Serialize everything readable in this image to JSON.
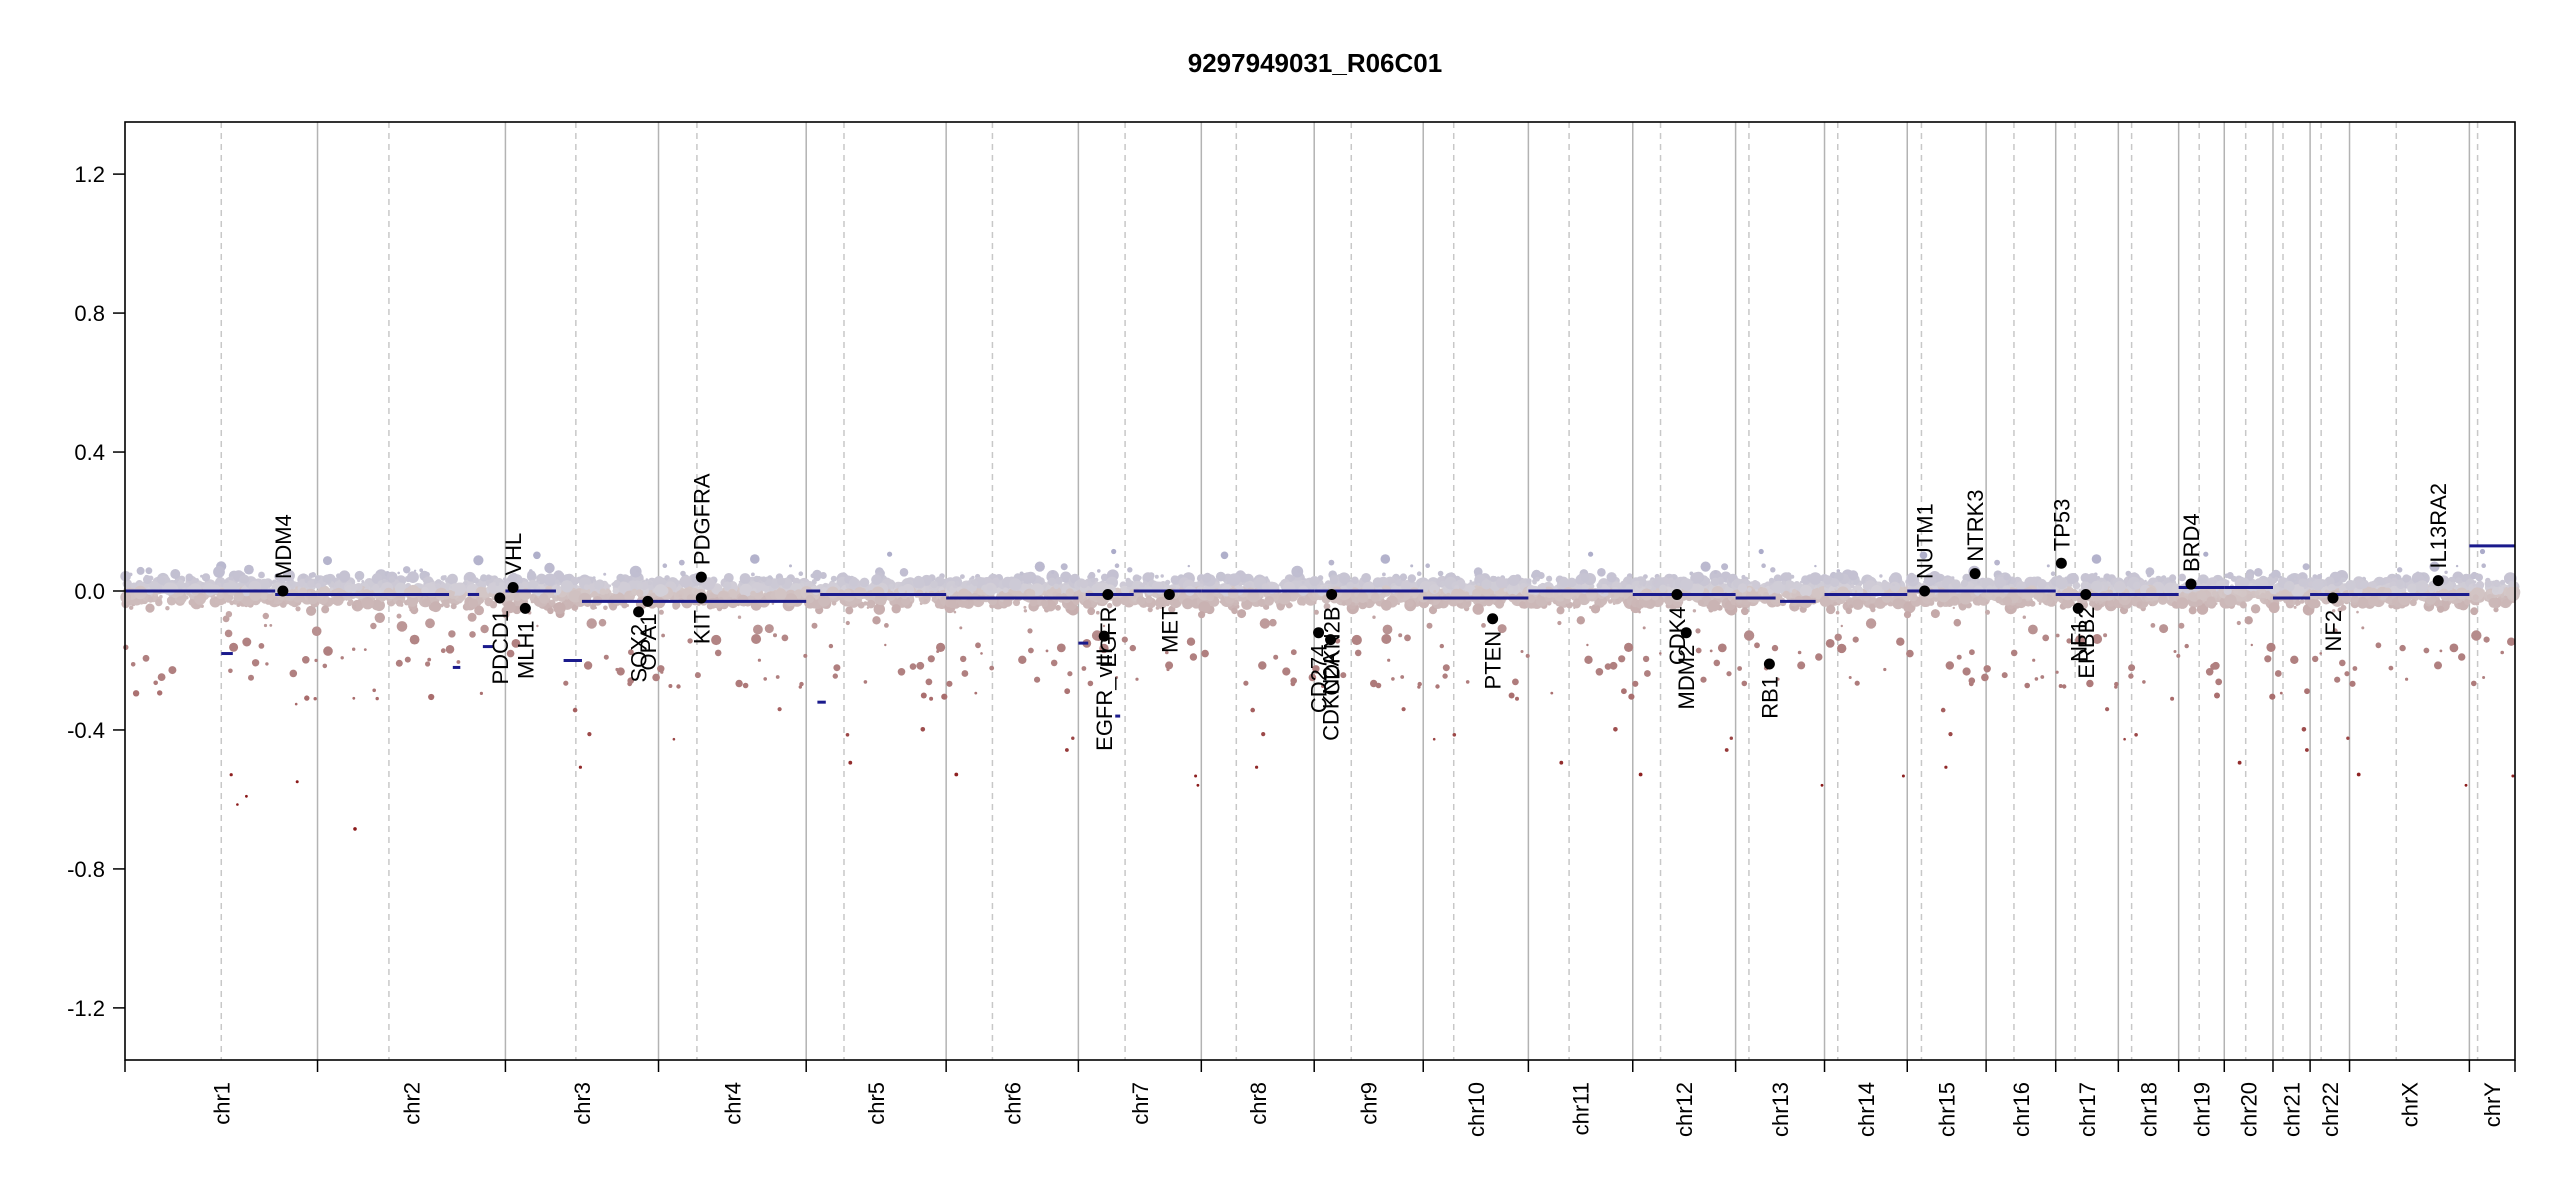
{
  "chart_data": {
    "type": "scatter",
    "title": "9297949031_R06C01",
    "xlabel": "",
    "ylabel": "",
    "ylim": [
      -1.35,
      1.35
    ],
    "y_ticks": [
      1.2,
      0.8,
      0.4,
      0.0,
      -0.4,
      -0.8,
      -1.2
    ],
    "y_tick_labels": [
      "1.2",
      "0.8",
      "0.4",
      "0.0",
      "-0.4",
      "-0.8",
      "-1.2"
    ],
    "colors": {
      "segment": "#1a1a8c",
      "gain": "#a9a9c8",
      "loss": "#b08080",
      "deep_loss": "#8b1a1a",
      "boundary": "#b3b3b3",
      "centromere": "#c8c8c8",
      "gene_dot": "#000000"
    },
    "chromosomes": [
      {
        "name": "chr1",
        "size": 249,
        "cen": 0.5
      },
      {
        "name": "chr2",
        "size": 243,
        "cen": 0.38
      },
      {
        "name": "chr3",
        "size": 198,
        "cen": 0.46
      },
      {
        "name": "chr4",
        "size": 191,
        "cen": 0.26
      },
      {
        "name": "chr5",
        "size": 181,
        "cen": 0.27
      },
      {
        "name": "chr6",
        "size": 171,
        "cen": 0.35
      },
      {
        "name": "chr7",
        "size": 159,
        "cen": 0.38
      },
      {
        "name": "chr8",
        "size": 146,
        "cen": 0.31
      },
      {
        "name": "chr9",
        "size": 141,
        "cen": 0.34
      },
      {
        "name": "chr10",
        "size": 136,
        "cen": 0.29
      },
      {
        "name": "chr11",
        "size": 135,
        "cen": 0.39
      },
      {
        "name": "chr12",
        "size": 133,
        "cen": 0.27
      },
      {
        "name": "chr13",
        "size": 115,
        "cen": 0.15
      },
      {
        "name": "chr14",
        "size": 107,
        "cen": 0.16
      },
      {
        "name": "chr15",
        "size": 102,
        "cen": 0.18
      },
      {
        "name": "chr16",
        "size": 90,
        "cen": 0.4
      },
      {
        "name": "chr17",
        "size": 81,
        "cen": 0.31
      },
      {
        "name": "chr18",
        "size": 78,
        "cen": 0.22
      },
      {
        "name": "chr19",
        "size": 59,
        "cen": 0.45
      },
      {
        "name": "chr20",
        "size": 63,
        "cen": 0.44
      },
      {
        "name": "chr21",
        "size": 48,
        "cen": 0.27
      },
      {
        "name": "chr22",
        "size": 51,
        "cen": 0.28
      },
      {
        "name": "chrX",
        "size": 155,
        "cen": 0.39
      },
      {
        "name": "chrY",
        "size": 59,
        "cen": 0.18
      }
    ],
    "segments": [
      {
        "chr": "chr1",
        "start": 0.0,
        "end": 0.78,
        "value": 0.0
      },
      {
        "chr": "chr1",
        "start": 0.5,
        "end": 0.56,
        "value": -0.18
      },
      {
        "chr": "chr1",
        "start": 0.78,
        "end": 1.0,
        "value": -0.01
      },
      {
        "chr": "chr2",
        "start": 0.0,
        "end": 0.7,
        "value": -0.01
      },
      {
        "chr": "chr2",
        "start": 0.72,
        "end": 0.76,
        "value": -0.22
      },
      {
        "chr": "chr2",
        "start": 0.8,
        "end": 0.86,
        "value": -0.01
      },
      {
        "chr": "chr2",
        "start": 0.88,
        "end": 0.94,
        "value": -0.16
      },
      {
        "chr": "chr3",
        "start": 0.0,
        "end": 0.33,
        "value": 0.0
      },
      {
        "chr": "chr3",
        "start": 0.38,
        "end": 0.5,
        "value": -0.2
      },
      {
        "chr": "chr3",
        "start": 0.5,
        "end": 1.0,
        "value": -0.03
      },
      {
        "chr": "chr4",
        "start": 0.0,
        "end": 1.0,
        "value": -0.03
      },
      {
        "chr": "chr5",
        "start": 0.0,
        "end": 0.1,
        "value": 0.0
      },
      {
        "chr": "chr5",
        "start": 0.08,
        "end": 0.14,
        "value": -0.32
      },
      {
        "chr": "chr5",
        "start": 0.1,
        "end": 1.0,
        "value": -0.01
      },
      {
        "chr": "chr6",
        "start": 0.0,
        "end": 1.0,
        "value": -0.02
      },
      {
        "chr": "chr7",
        "start": 0.0,
        "end": 0.08,
        "value": -0.15
      },
      {
        "chr": "chr7",
        "start": 0.06,
        "end": 0.45,
        "value": -0.01
      },
      {
        "chr": "chr7",
        "start": 0.3,
        "end": 0.34,
        "value": -0.36
      },
      {
        "chr": "chr7",
        "start": 0.45,
        "end": 1.0,
        "value": 0.0
      },
      {
        "chr": "chr8",
        "start": 0.0,
        "end": 1.0,
        "value": 0.0
      },
      {
        "chr": "chr9",
        "start": 0.0,
        "end": 1.0,
        "value": 0.0
      },
      {
        "chr": "chr10",
        "start": 0.0,
        "end": 1.0,
        "value": -0.02
      },
      {
        "chr": "chr11",
        "start": 0.0,
        "end": 1.0,
        "value": 0.0
      },
      {
        "chr": "chr12",
        "start": 0.0,
        "end": 1.0,
        "value": -0.01
      },
      {
        "chr": "chr13",
        "start": 0.0,
        "end": 0.45,
        "value": -0.02
      },
      {
        "chr": "chr13",
        "start": 0.5,
        "end": 0.9,
        "value": -0.03
      },
      {
        "chr": "chr14",
        "start": 0.0,
        "end": 1.0,
        "value": -0.01
      },
      {
        "chr": "chr15",
        "start": 0.0,
        "end": 1.0,
        "value": 0.0
      },
      {
        "chr": "chr16",
        "start": 0.0,
        "end": 1.0,
        "value": 0.0
      },
      {
        "chr": "chr17",
        "start": 0.0,
        "end": 1.0,
        "value": -0.01
      },
      {
        "chr": "chr18",
        "start": 0.0,
        "end": 1.0,
        "value": -0.01
      },
      {
        "chr": "chr19",
        "start": 0.0,
        "end": 1.0,
        "value": 0.01
      },
      {
        "chr": "chr20",
        "start": 0.0,
        "end": 1.0,
        "value": 0.01
      },
      {
        "chr": "chr21",
        "start": 0.0,
        "end": 1.0,
        "value": -0.02
      },
      {
        "chr": "chr22",
        "start": 0.0,
        "end": 1.0,
        "value": -0.01
      },
      {
        "chr": "chrX",
        "start": 0.0,
        "end": 1.0,
        "value": -0.01
      },
      {
        "chr": "chrY",
        "start": 0.0,
        "end": 1.0,
        "value": 0.13
      }
    ],
    "genes": [
      {
        "name": "MDM4",
        "chr": "chr1",
        "pos": 0.82,
        "value": 0.0,
        "label_dir": "up"
      },
      {
        "name": "PDCD1",
        "chr": "chr2",
        "pos": 0.97,
        "value": -0.02,
        "label_dir": "down"
      },
      {
        "name": "VHL",
        "chr": "chr3",
        "pos": 0.05,
        "value": 0.01,
        "label_dir": "up"
      },
      {
        "name": "MLH1",
        "chr": "chr3",
        "pos": 0.13,
        "value": -0.05,
        "label_dir": "down"
      },
      {
        "name": "SOX2",
        "chr": "chr3",
        "pos": 0.87,
        "value": -0.06,
        "label_dir": "down"
      },
      {
        "name": "OPA1",
        "chr": "chr3",
        "pos": 0.93,
        "value": -0.03,
        "label_dir": "down"
      },
      {
        "name": "PDGFRA",
        "chr": "chr4",
        "pos": 0.29,
        "value": 0.04,
        "label_dir": "up"
      },
      {
        "name": "KIT",
        "chr": "chr4",
        "pos": 0.29,
        "value": -0.02,
        "label_dir": "down"
      },
      {
        "name": "EGFR_vIII",
        "chr": "chr7",
        "pos": 0.21,
        "value": -0.13,
        "label_dir": "down"
      },
      {
        "name": "EGFR",
        "chr": "chr7",
        "pos": 0.24,
        "value": -0.01,
        "label_dir": "down"
      },
      {
        "name": "MET",
        "chr": "chr7",
        "pos": 0.74,
        "value": -0.01,
        "label_dir": "down"
      },
      {
        "name": "CD274",
        "chr": "chr9",
        "pos": 0.04,
        "value": -0.12,
        "label_dir": "down"
      },
      {
        "name": "CDKN2A",
        "chr": "chr9",
        "pos": 0.15,
        "value": -0.14,
        "label_dir": "down"
      },
      {
        "name": "CDKN2B",
        "chr": "chr9",
        "pos": 0.16,
        "value": -0.01,
        "label_dir": "down"
      },
      {
        "name": "PTEN",
        "chr": "chr10",
        "pos": 0.66,
        "value": -0.08,
        "label_dir": "down"
      },
      {
        "name": "CDK4",
        "chr": "chr12",
        "pos": 0.43,
        "value": -0.01,
        "label_dir": "down"
      },
      {
        "name": "MDM2",
        "chr": "chr12",
        "pos": 0.52,
        "value": -0.12,
        "label_dir": "down"
      },
      {
        "name": "RB1",
        "chr": "chr13",
        "pos": 0.38,
        "value": -0.21,
        "label_dir": "down"
      },
      {
        "name": "NUTM1",
        "chr": "chr15",
        "pos": 0.22,
        "value": 0.0,
        "label_dir": "up"
      },
      {
        "name": "NTRK3",
        "chr": "chr15",
        "pos": 0.86,
        "value": 0.05,
        "label_dir": "up"
      },
      {
        "name": "TP53",
        "chr": "chr17",
        "pos": 0.09,
        "value": 0.08,
        "label_dir": "up"
      },
      {
        "name": "NF1",
        "chr": "chr17",
        "pos": 0.36,
        "value": -0.05,
        "label_dir": "down"
      },
      {
        "name": "ERBB2",
        "chr": "chr17",
        "pos": 0.48,
        "value": -0.01,
        "label_dir": "down"
      },
      {
        "name": "BRD4",
        "chr": "chr19",
        "pos": 0.27,
        "value": 0.02,
        "label_dir": "up"
      },
      {
        "name": "NF2",
        "chr": "chr22",
        "pos": 0.58,
        "value": -0.02,
        "label_dir": "down"
      },
      {
        "name": "IL13RA2",
        "chr": "chrX",
        "pos": 0.74,
        "value": 0.03,
        "label_dir": "up"
      }
    ]
  }
}
